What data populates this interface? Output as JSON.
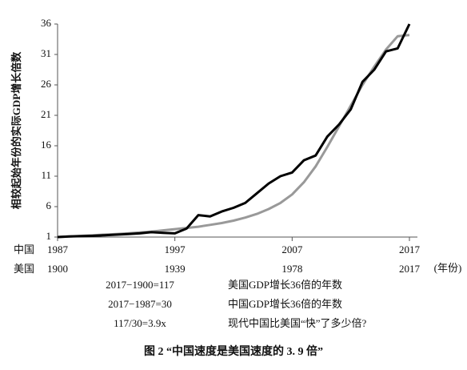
{
  "chart_data": {
    "type": "line",
    "y_label": "相较起始年份的实际GDP增长倍数",
    "x": [
      1987,
      1988,
      1989,
      1990,
      1991,
      1992,
      1993,
      1994,
      1995,
      1996,
      1997,
      1998,
      1999,
      2000,
      2001,
      2002,
      2003,
      2004,
      2005,
      2006,
      2007,
      2008,
      2009,
      2010,
      2011,
      2012,
      2013,
      2014,
      2015,
      2016,
      2017
    ],
    "series": [
      {
        "color": "#999999",
        "values": [
          1.0,
          1.1,
          1.2,
          1.3,
          1.4,
          1.5,
          1.6,
          1.75,
          1.9,
          2.1,
          2.3,
          2.5,
          2.7,
          3.0,
          3.3,
          3.7,
          4.2,
          4.8,
          5.6,
          6.6,
          8.0,
          10.0,
          12.6,
          15.8,
          19.2,
          22.6,
          26.0,
          29.0,
          31.8,
          34.0,
          34.2
        ]
      },
      {
        "color": "#000000",
        "values": [
          1.0,
          1.1,
          1.15,
          1.2,
          1.3,
          1.4,
          1.5,
          1.6,
          1.8,
          1.7,
          1.6,
          2.4,
          4.6,
          4.4,
          5.2,
          5.8,
          6.6,
          8.2,
          9.8,
          11.0,
          11.6,
          13.6,
          14.4,
          17.5,
          19.5,
          22.0,
          26.5,
          28.5,
          31.5,
          32.0,
          36.0
        ]
      }
    ],
    "xlim": [
      1987,
      2017
    ],
    "xticks": [
      1987,
      1997,
      2007,
      2017
    ],
    "x_rows": [
      {
        "name": "中国",
        "labels": [
          "1987",
          "1997",
          "2007",
          "2017"
        ]
      },
      {
        "name": "美国",
        "labels": [
          "1900",
          "1939",
          "1978",
          "2017"
        ]
      }
    ],
    "x_unit": "(年份)",
    "ylim": [
      1,
      36
    ],
    "yticks": [
      1,
      6,
      11,
      16,
      21,
      26,
      31,
      36
    ],
    "grid": false,
    "notes": [
      {
        "formula": "2017−1900=117",
        "text": "美国GDP增长36倍的年数"
      },
      {
        "formula": "2017−1987=30",
        "text": "中国GDP增长36倍的年数"
      },
      {
        "formula": "117/30=3.9x",
        "text": "现代中国比美国“快”了多少倍?"
      }
    ],
    "caption": "图 2 “中国速度是美国速度的 3. 9 倍”"
  }
}
